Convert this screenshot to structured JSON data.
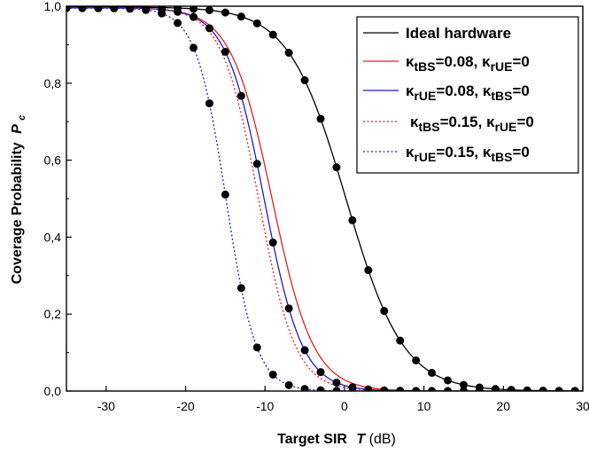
{
  "chart_data": {
    "type": "line",
    "xlabel": "Target SIR",
    "xlabel_var": "T",
    "xlabel_unit": "(dB)",
    "ylabel": "Coverage Probability",
    "ylabel_var": "P",
    "ylabel_sub": "c",
    "xlim": [
      -35,
      30
    ],
    "ylim": [
      0,
      1
    ],
    "xticks": [
      -30,
      -20,
      -10,
      0,
      10,
      20,
      30
    ],
    "xtick_labels": [
      "-30",
      "-20",
      "-10",
      "0",
      "10",
      "20",
      "30"
    ],
    "yticks": [
      0,
      0.2,
      0.4,
      0.6,
      0.8,
      1.0
    ],
    "ytick_labels": [
      "0,0",
      "0,2",
      "0,4",
      "0,6",
      "0,8",
      "1,0"
    ],
    "legend_position": "top-right",
    "series": [
      {
        "name": "Ideal hardware",
        "color": "#000000",
        "dash": "solid",
        "curve": {
          "mid": 0.2,
          "scale": 3.6,
          "top": 0.998
        },
        "markers_x": [
          -35,
          -33,
          -31,
          -29,
          -27,
          -25,
          -23,
          -21,
          -19,
          -17,
          -15,
          -13,
          -11,
          -9,
          -7,
          -5,
          -3,
          -1,
          1,
          3,
          5,
          7,
          9,
          11,
          13,
          15,
          17,
          19,
          21,
          23,
          25,
          27,
          29
        ]
      },
      {
        "name": "κ_tBS=0.08, κ_rUE=0",
        "legend": {
          "pre": "κ",
          "s1": "tBS",
          "mid": "=0.08, κ",
          "s2": "rUE",
          "post": "=0"
        },
        "color": "#e8201e",
        "dash": "solid",
        "curve": {
          "mid": -9.1,
          "scale": 2.6,
          "top": 0.996
        },
        "markers_x": []
      },
      {
        "name": "κ_rUE=0.08, κ_tBS=0",
        "legend": {
          "pre": "κ",
          "s1": "rUE",
          "mid": "=0.08, κ",
          "s2": "tBS",
          "post": "=0"
        },
        "color": "#1d1fcf",
        "dash": "solid",
        "curve": {
          "mid": -10.1,
          "scale": 2.4,
          "top": 0.996
        },
        "markers_x": [
          -35,
          -33,
          -31,
          -29,
          -27,
          -25,
          -23,
          -21,
          -19,
          -17,
          -15,
          -13,
          -11,
          -9,
          -7,
          -5,
          -3,
          -1,
          1,
          3,
          5,
          7,
          9,
          11,
          13,
          15,
          17,
          19,
          21,
          23,
          25,
          27,
          29
        ]
      },
      {
        "name": "κ_tBS=0.15, κ_rUE=0",
        "legend": {
          "pre": "κ",
          "s1": "tBS",
          "mid": "=0.15, κ",
          "s2": "rUE",
          "post": "=0"
        },
        "color": "#e8201e",
        "dash": "dotted",
        "curve": {
          "mid": -10.8,
          "scale": 2.3,
          "top": 0.996
        },
        "markers_x": []
      },
      {
        "name": "κ_rUE=0.15, κ_tBS=0",
        "legend": {
          "pre": "κ",
          "s1": "rUE",
          "mid": "=0.15, κ",
          "s2": "tBS",
          "post": "=0"
        },
        "color": "#1d1fcf",
        "dash": "dotted",
        "curve": {
          "mid": -14.9,
          "scale": 1.9,
          "top": 0.995
        },
        "markers_x": [
          -35,
          -33,
          -31,
          -29,
          -27,
          -25,
          -23,
          -21,
          -19,
          -17,
          -15,
          -13,
          -11,
          -9,
          -7,
          -5,
          -3,
          -1,
          1,
          3,
          5,
          7,
          9,
          11,
          13,
          15,
          17,
          19,
          21,
          23,
          25,
          27,
          29
        ]
      }
    ]
  }
}
